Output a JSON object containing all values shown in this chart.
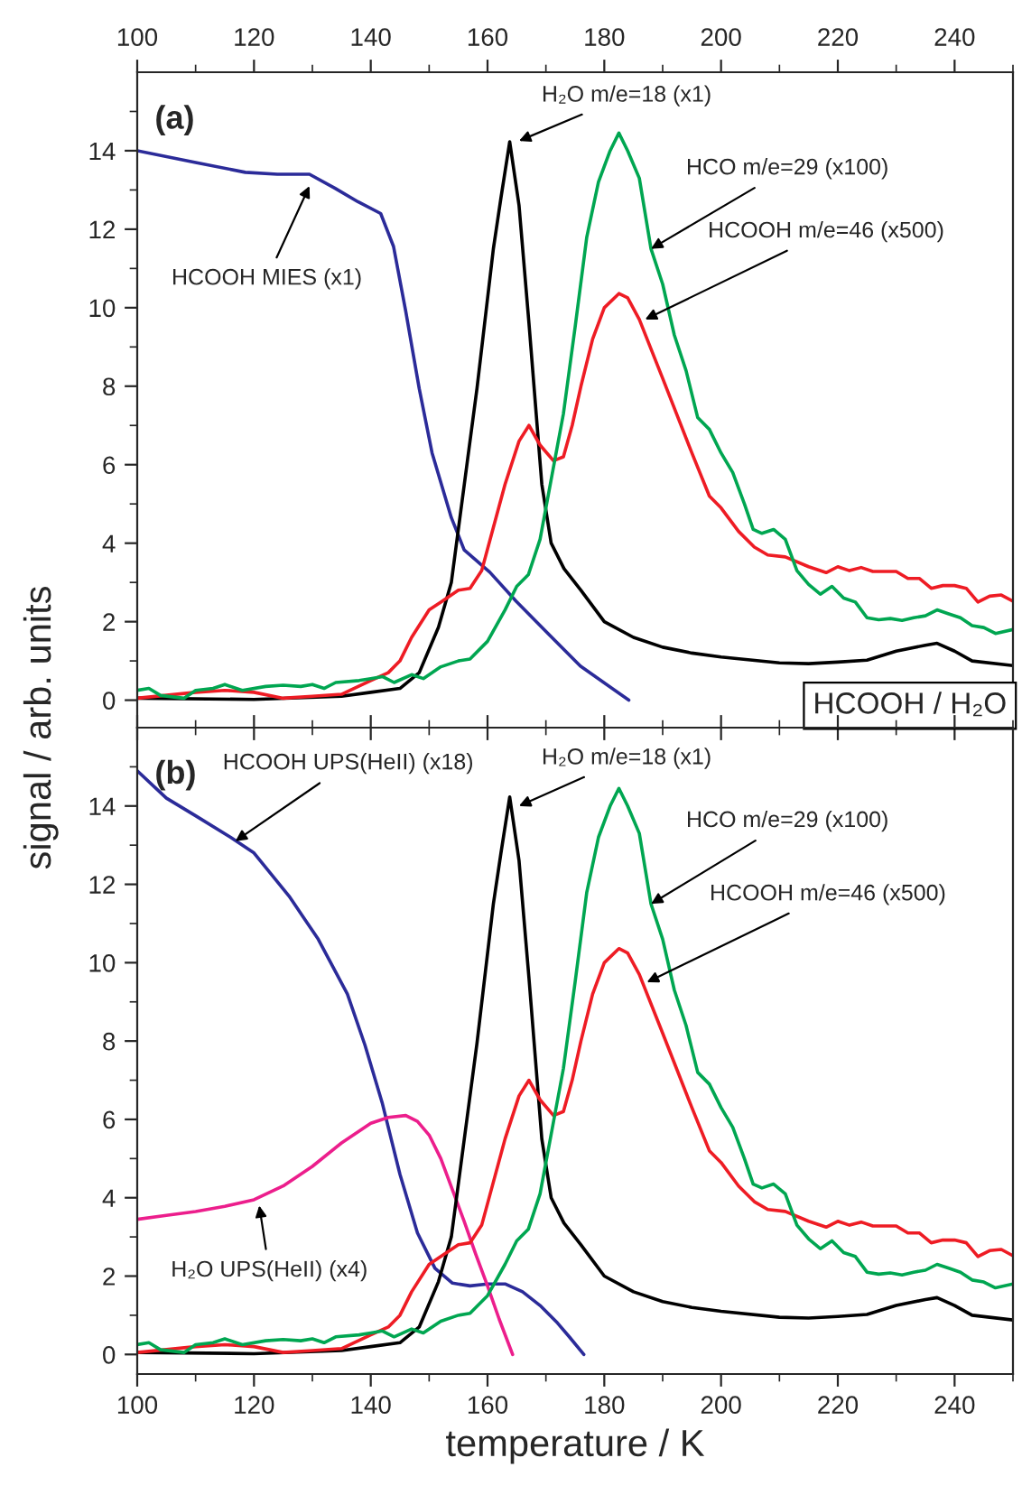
{
  "chart_data": [
    {
      "type": "line",
      "ylabel": "signal / arb. units",
      "ylim": [
        -0.7,
        16
      ],
      "xlim": [
        100,
        250
      ],
      "xticks": [
        100,
        120,
        140,
        160,
        180,
        200,
        220,
        240
      ],
      "yticks": [
        0,
        2,
        4,
        6,
        8,
        10,
        12,
        14
      ],
      "grid": false,
      "legend": false,
      "series": [
        {
          "color": "#2b2b99",
          "x": [
            100,
            110,
            118.5,
            124,
            129.5,
            133.9,
            137.8,
            141.7,
            143.9,
            146,
            148.3,
            150.5,
            153.8,
            156,
            160.4,
            164.9,
            170.4,
            175.9,
            184.2
          ],
          "values": [
            14.0,
            13.7,
            13.45,
            13.4,
            13.4,
            13.04,
            12.7,
            12.4,
            11.56,
            9.9,
            7.94,
            6.3,
            4.65,
            3.83,
            3.26,
            2.52,
            1.69,
            0.87,
            0.0
          ]
        },
        {
          "color": "#000000",
          "x": [
            100,
            120,
            135,
            140,
            145,
            148.3,
            151.6,
            153.8,
            158.2,
            161,
            162.3,
            163.8,
            165.4,
            167.1,
            169.3,
            170.9,
            173.1,
            176,
            180,
            185,
            190,
            195,
            200,
            210,
            215,
            220,
            225,
            230,
            235,
            237,
            240,
            243,
            250
          ],
          "values": [
            0.05,
            0.02,
            0.1,
            0.2,
            0.3,
            0.7,
            1.86,
            3.0,
            7.95,
            11.5,
            12.8,
            14.23,
            12.6,
            9.6,
            5.5,
            4.0,
            3.35,
            2.8,
            2.0,
            1.6,
            1.35,
            1.2,
            1.1,
            0.95,
            0.93,
            0.97,
            1.02,
            1.25,
            1.4,
            1.45,
            1.25,
            1.0,
            0.88
          ]
        },
        {
          "color": "#ee1c24",
          "x": [
            100,
            110,
            115,
            120,
            125,
            130,
            135,
            140,
            143,
            145,
            147,
            150,
            152,
            155,
            157,
            159,
            161,
            163,
            165.4,
            167.1,
            169,
            171.3,
            173,
            174.5,
            176,
            178,
            180,
            182.5,
            184,
            186,
            190,
            195,
            198,
            200,
            203,
            205.7,
            208,
            211,
            215,
            218,
            220,
            222,
            224,
            226,
            230,
            232,
            234,
            236,
            238,
            240,
            242,
            244,
            246,
            248,
            250
          ],
          "values": [
            0.05,
            0.2,
            0.25,
            0.2,
            0.05,
            0.1,
            0.15,
            0.5,
            0.7,
            1.0,
            1.6,
            2.3,
            2.5,
            2.8,
            2.85,
            3.3,
            4.4,
            5.5,
            6.6,
            7.0,
            6.5,
            6.1,
            6.2,
            7.0,
            8.0,
            9.2,
            10.0,
            10.36,
            10.25,
            9.7,
            8.2,
            6.3,
            5.2,
            4.9,
            4.3,
            3.9,
            3.7,
            3.65,
            3.4,
            3.25,
            3.4,
            3.3,
            3.38,
            3.28,
            3.28,
            3.1,
            3.1,
            2.85,
            2.92,
            2.92,
            2.85,
            2.5,
            2.65,
            2.68,
            2.52
          ]
        },
        {
          "color": "#00a651",
          "x": [
            100,
            102,
            104,
            108,
            110,
            113,
            115,
            118,
            122,
            125,
            128,
            130,
            132,
            134,
            138,
            140,
            142,
            144,
            147,
            149,
            152,
            155,
            157,
            160,
            163,
            165,
            167,
            169,
            171,
            173,
            175,
            177,
            179,
            181,
            182.5,
            184,
            186,
            188,
            190,
            192,
            194,
            196,
            198,
            200,
            202,
            204,
            205.5,
            207,
            209,
            211,
            213,
            215,
            217,
            219,
            221,
            223,
            225,
            227,
            229,
            231,
            233,
            235,
            237,
            239,
            241,
            243,
            245,
            247,
            250
          ],
          "values": [
            0.25,
            0.3,
            0.12,
            0.05,
            0.25,
            0.3,
            0.4,
            0.25,
            0.35,
            0.38,
            0.35,
            0.4,
            0.3,
            0.45,
            0.5,
            0.55,
            0.6,
            0.45,
            0.65,
            0.55,
            0.85,
            1.0,
            1.05,
            1.5,
            2.3,
            2.9,
            3.2,
            4.1,
            5.7,
            7.3,
            9.5,
            11.8,
            13.2,
            14.0,
            14.45,
            14.0,
            13.3,
            11.5,
            10.6,
            9.3,
            8.4,
            7.2,
            6.9,
            6.3,
            5.8,
            5.0,
            4.35,
            4.25,
            4.35,
            4.1,
            3.3,
            2.95,
            2.7,
            2.9,
            2.6,
            2.5,
            2.1,
            2.05,
            2.08,
            2.03,
            2.1,
            2.15,
            2.3,
            2.2,
            2.1,
            1.9,
            1.85,
            1.7,
            1.8
          ]
        }
      ],
      "annotations": [
        "(a)",
        {
          "text": "HCOOH MIES (x1)",
          "x": 129.5,
          "y": 13.1
        },
        {
          "text": "H₂O m/e=18 (x1)",
          "x": 165.4,
          "y": 14.25
        },
        {
          "text": "HCO m/e=29 (x100)",
          "x": 188,
          "y": 11.5
        },
        {
          "text": "HCOOH m/e=46 (x500)",
          "x": 187,
          "y": 9.7
        },
        "HCOOH / H₂O"
      ]
    },
    {
      "type": "line",
      "xlabel": "temperature / K",
      "xlim": [
        100,
        250
      ],
      "ylim": [
        -0.5,
        16
      ],
      "xticks": [
        100,
        120,
        140,
        160,
        180,
        200,
        220,
        240
      ],
      "yticks": [
        0,
        2,
        4,
        6,
        8,
        10,
        12,
        14
      ],
      "grid": false,
      "legend": false,
      "series": [
        {
          "color": "#2b2b99",
          "x": [
            100,
            105,
            110,
            116,
            120,
            126,
            131,
            136,
            139,
            142,
            145,
            148,
            151,
            154,
            157,
            160,
            163,
            166,
            169,
            172,
            174,
            176.5
          ],
          "values": [
            14.9,
            14.2,
            13.75,
            13.2,
            12.8,
            11.7,
            10.6,
            9.2,
            7.9,
            6.4,
            4.6,
            3.1,
            2.2,
            1.82,
            1.75,
            1.8,
            1.8,
            1.6,
            1.25,
            0.8,
            0.45,
            0.0
          ]
        },
        {
          "color": "#ec1e8c",
          "x": [
            100,
            105,
            110,
            115,
            120,
            125,
            130,
            135,
            140,
            143,
            146,
            148,
            150,
            152,
            154,
            156,
            158,
            160,
            162,
            164.3
          ],
          "values": [
            3.45,
            3.55,
            3.65,
            3.78,
            3.95,
            4.3,
            4.8,
            5.4,
            5.9,
            6.05,
            6.1,
            5.95,
            5.6,
            5.0,
            4.2,
            3.4,
            2.55,
            1.75,
            0.9,
            0.0
          ]
        },
        {
          "color": "#000000",
          "x": [
            100,
            120,
            135,
            140,
            145,
            148.3,
            151.6,
            153.8,
            158.2,
            161,
            162.3,
            163.8,
            165.4,
            167.1,
            169.3,
            170.9,
            173.1,
            176,
            180,
            185,
            190,
            195,
            200,
            210,
            215,
            220,
            225,
            230,
            235,
            237,
            240,
            243,
            250
          ],
          "values": [
            0.05,
            0.02,
            0.1,
            0.2,
            0.3,
            0.7,
            1.86,
            3.0,
            7.95,
            11.5,
            12.8,
            14.23,
            12.6,
            9.6,
            5.5,
            4.0,
            3.35,
            2.8,
            2.0,
            1.6,
            1.35,
            1.2,
            1.1,
            0.95,
            0.93,
            0.97,
            1.02,
            1.25,
            1.4,
            1.45,
            1.25,
            1.0,
            0.88
          ]
        },
        {
          "color": "#ee1c24",
          "x": [
            100,
            110,
            115,
            120,
            125,
            130,
            135,
            140,
            143,
            145,
            147,
            150,
            152,
            155,
            157,
            159,
            161,
            163,
            165.4,
            167.1,
            169,
            171.3,
            173,
            174.5,
            176,
            178,
            180,
            182.5,
            184,
            186,
            190,
            195,
            198,
            200,
            203,
            205.7,
            208,
            211,
            215,
            218,
            220,
            222,
            224,
            226,
            230,
            232,
            234,
            236,
            238,
            240,
            242,
            244,
            246,
            248,
            250
          ],
          "values": [
            0.05,
            0.2,
            0.25,
            0.2,
            0.05,
            0.1,
            0.15,
            0.5,
            0.7,
            1.0,
            1.6,
            2.3,
            2.5,
            2.8,
            2.85,
            3.3,
            4.4,
            5.5,
            6.6,
            7.0,
            6.5,
            6.1,
            6.2,
            7.0,
            8.0,
            9.2,
            10.0,
            10.36,
            10.25,
            9.7,
            8.2,
            6.3,
            5.2,
            4.9,
            4.3,
            3.9,
            3.7,
            3.65,
            3.4,
            3.25,
            3.4,
            3.3,
            3.38,
            3.28,
            3.28,
            3.1,
            3.1,
            2.85,
            2.92,
            2.92,
            2.85,
            2.5,
            2.65,
            2.68,
            2.52
          ]
        },
        {
          "color": "#00a651",
          "x": [
            100,
            102,
            104,
            108,
            110,
            113,
            115,
            118,
            122,
            125,
            128,
            130,
            132,
            134,
            138,
            140,
            142,
            144,
            147,
            149,
            152,
            155,
            157,
            160,
            163,
            165,
            167,
            169,
            171,
            173,
            175,
            177,
            179,
            181,
            182.5,
            184,
            186,
            188,
            190,
            192,
            194,
            196,
            198,
            200,
            202,
            204,
            205.5,
            207,
            209,
            211,
            213,
            215,
            217,
            219,
            221,
            223,
            225,
            227,
            229,
            231,
            233,
            235,
            237,
            239,
            241,
            243,
            245,
            247,
            250
          ],
          "values": [
            0.25,
            0.3,
            0.12,
            0.05,
            0.25,
            0.3,
            0.4,
            0.25,
            0.35,
            0.38,
            0.35,
            0.4,
            0.3,
            0.45,
            0.5,
            0.55,
            0.6,
            0.45,
            0.65,
            0.55,
            0.85,
            1.0,
            1.05,
            1.5,
            2.3,
            2.9,
            3.2,
            4.1,
            5.7,
            7.3,
            9.5,
            11.8,
            13.2,
            14.0,
            14.45,
            14.0,
            13.3,
            11.5,
            10.6,
            9.3,
            8.4,
            7.2,
            6.9,
            6.3,
            5.8,
            5.0,
            4.35,
            4.25,
            4.35,
            4.1,
            3.3,
            2.95,
            2.7,
            2.9,
            2.6,
            2.5,
            2.1,
            2.05,
            2.08,
            2.03,
            2.1,
            2.15,
            2.3,
            2.2,
            2.1,
            1.9,
            1.85,
            1.7,
            1.8
          ]
        }
      ],
      "annotations": [
        "(b)",
        {
          "text": "HCOOH UPS(HeII) (x18)",
          "x": 116.8,
          "y": 13.1
        },
        {
          "text": "H₂O m/e=18 (x1)",
          "x": 165.4,
          "y": 14.0
        },
        {
          "text": "HCO m/e=29 (x100)",
          "x": 188,
          "y": 11.5
        },
        {
          "text": "HCOOH m/e=46 (x500)",
          "x": 187.3,
          "y": 9.5
        },
        {
          "text": "H₂O UPS(HeII) (x4)",
          "x": 120.9,
          "y": 3.8
        }
      ]
    }
  ]
}
